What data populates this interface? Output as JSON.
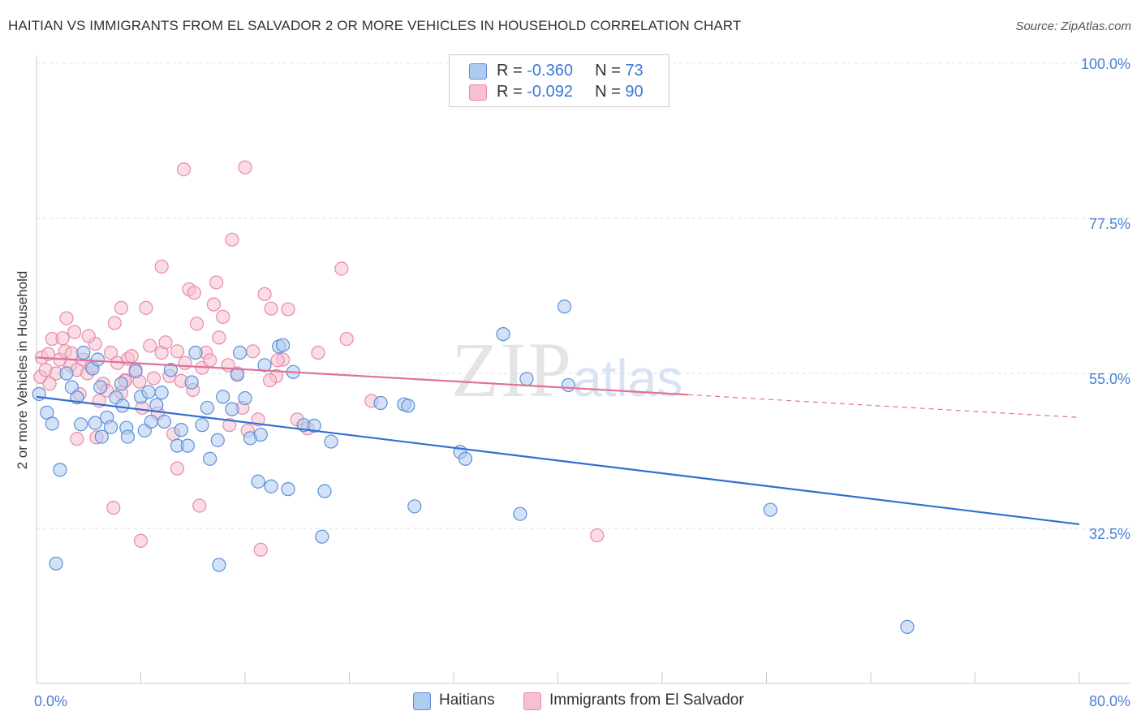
{
  "header": {
    "title": "HAITIAN VS IMMIGRANTS FROM EL SALVADOR 2 OR MORE VEHICLES IN HOUSEHOLD CORRELATION CHART",
    "source": "Source: ZipAtlas.com"
  },
  "watermark": {
    "zip": "ZIP",
    "atlas": "atlas"
  },
  "colors": {
    "blue_fill": "#aecbf0",
    "blue_stroke": "#5b8fd6",
    "blue_line": "#3070d0",
    "pink_fill": "#f6c0d0",
    "pink_stroke": "#e88aa8",
    "pink_line": "#e0709a",
    "tick_text": "#4a7fd4"
  },
  "legend": {
    "rows": [
      {
        "r_label": "R = ",
        "r_value": "-0.360",
        "n_label": "N = ",
        "n_value": "73"
      },
      {
        "r_label": "R = ",
        "r_value": "-0.092",
        "n_label": "N = ",
        "n_value": "90"
      }
    ]
  },
  "bottom_legend": {
    "series_a": "Haitians",
    "series_b": "Immigrants from El Salvador"
  },
  "chart_data": {
    "type": "scatter",
    "title": "HAITIAN VS IMMIGRANTS FROM EL SALVADOR 2 OR MORE VEHICLES IN HOUSEHOLD CORRELATION CHART",
    "xlabel": "",
    "ylabel": "2 or more Vehicles in Household",
    "xlim": [
      0,
      80
    ],
    "ylim": [
      10,
      100
    ],
    "x_tick_labels": [
      "0.0%",
      "80.0%"
    ],
    "y_ticks": [
      32.5,
      55.0,
      77.5,
      100.0
    ],
    "y_tick_labels": [
      "32.5%",
      "55.0%",
      "77.5%",
      "100.0%"
    ],
    "grid": true,
    "legend_position": "top-center",
    "series": [
      {
        "name": "Haitians",
        "r": -0.36,
        "n": 73,
        "trend": {
          "x": [
            0,
            80
          ],
          "y": [
            51.6,
            33.1
          ]
        },
        "x": [
          0.2,
          0.8,
          1.2,
          1.8,
          2.3,
          2.7,
          3.1,
          3.6,
          4.3,
          4.5,
          4.9,
          5.0,
          5.4,
          5.7,
          6.1,
          6.5,
          6.9,
          7.0,
          7.6,
          8.0,
          8.3,
          8.6,
          8.8,
          9.2,
          9.6,
          9.8,
          10.3,
          10.8,
          11.1,
          11.6,
          11.9,
          12.2,
          13.1,
          13.3,
          13.9,
          14.3,
          15.0,
          15.4,
          15.6,
          16.0,
          16.4,
          17.0,
          17.2,
          17.5,
          18.0,
          18.6,
          18.9,
          19.3,
          19.7,
          20.5,
          21.3,
          21.9,
          22.1,
          22.6,
          26.4,
          28.2,
          28.5,
          29.0,
          32.5,
          32.9,
          35.8,
          37.1,
          37.6,
          40.5,
          40.8,
          56.3,
          66.8,
          1.5,
          14.0,
          12.7,
          6.6,
          3.4,
          4.7
        ],
        "y": [
          52.0,
          49.3,
          47.7,
          41.0,
          55.0,
          53.0,
          51.5,
          58.0,
          55.7,
          47.8,
          53.0,
          45.8,
          48.6,
          47.2,
          51.5,
          53.5,
          47.1,
          45.8,
          55.3,
          51.6,
          46.7,
          52.3,
          48.0,
          50.4,
          52.2,
          48.0,
          55.5,
          44.5,
          46.8,
          44.5,
          53.7,
          58.0,
          50.0,
          42.6,
          45.3,
          51.6,
          49.8,
          54.8,
          58.0,
          51.4,
          45.6,
          39.3,
          46.1,
          56.2,
          38.6,
          58.9,
          59.1,
          38.2,
          55.2,
          47.5,
          47.4,
          31.3,
          37.9,
          45.1,
          50.7,
          50.5,
          50.3,
          35.7,
          43.6,
          42.6,
          60.7,
          34.6,
          54.2,
          64.7,
          53.3,
          35.2,
          18.2,
          27.4,
          27.2,
          47.5,
          50.3,
          47.6,
          57.0
        ]
      },
      {
        "name": "Immigrants from El Salvador",
        "r": -0.092,
        "n": 90,
        "trend": {
          "x": [
            0,
            50,
            80
          ],
          "y": [
            57.3,
            51.9,
            48.6
          ]
        },
        "x": [
          0.3,
          0.4,
          0.7,
          0.9,
          1.2,
          1.5,
          1.8,
          2.0,
          2.3,
          2.6,
          2.9,
          3.1,
          3.3,
          3.6,
          3.9,
          4.2,
          4.5,
          4.8,
          5.1,
          5.4,
          5.7,
          6.0,
          6.2,
          6.5,
          6.8,
          7.0,
          7.3,
          7.6,
          7.9,
          8.1,
          8.4,
          8.7,
          9.0,
          9.3,
          9.6,
          9.9,
          10.2,
          10.5,
          10.8,
          11.1,
          11.4,
          11.7,
          12.0,
          12.3,
          12.7,
          13.0,
          13.3,
          13.6,
          14.0,
          14.3,
          14.7,
          15.0,
          15.4,
          15.8,
          16.2,
          16.6,
          17.0,
          17.5,
          18.0,
          18.4,
          18.9,
          19.3,
          20.0,
          20.8,
          21.6,
          23.4,
          23.8,
          25.7,
          43.0,
          6.5,
          17.9,
          14.8,
          16.0,
          12.1,
          9.6,
          11.3,
          13.8,
          10.8,
          4.6,
          3.1,
          1.0,
          2.2,
          5.9,
          12.5,
          17.2,
          2.7,
          8.0,
          4.0,
          6.8,
          18.5
        ],
        "y": [
          54.5,
          57.3,
          55.5,
          57.8,
          60.0,
          55.0,
          57.0,
          60.1,
          63.0,
          56.2,
          61.0,
          55.5,
          52.0,
          57.0,
          55.0,
          56.0,
          59.3,
          51.0,
          53.5,
          52.5,
          58.0,
          62.3,
          56.5,
          52.2,
          54.0,
          57.1,
          57.5,
          55.5,
          53.8,
          50.0,
          64.5,
          59.0,
          54.3,
          49.2,
          58.0,
          59.5,
          54.6,
          46.2,
          58.2,
          53.9,
          56.5,
          67.2,
          52.6,
          62.2,
          55.8,
          58.0,
          56.9,
          65.0,
          60.2,
          63.2,
          56.2,
          74.4,
          55.0,
          50.0,
          46.7,
          58.2,
          48.3,
          66.5,
          64.4,
          54.6,
          57.0,
          64.3,
          48.3,
          47.0,
          58.0,
          70.2,
          60.0,
          51.0,
          31.5,
          64.5,
          54.0,
          47.5,
          84.9,
          66.7,
          70.5,
          84.6,
          68.2,
          41.2,
          45.7,
          45.5,
          53.5,
          58.2,
          35.5,
          35.8,
          29.4,
          57.9,
          30.7,
          60.4,
          53.9,
          56.9
        ]
      }
    ]
  }
}
